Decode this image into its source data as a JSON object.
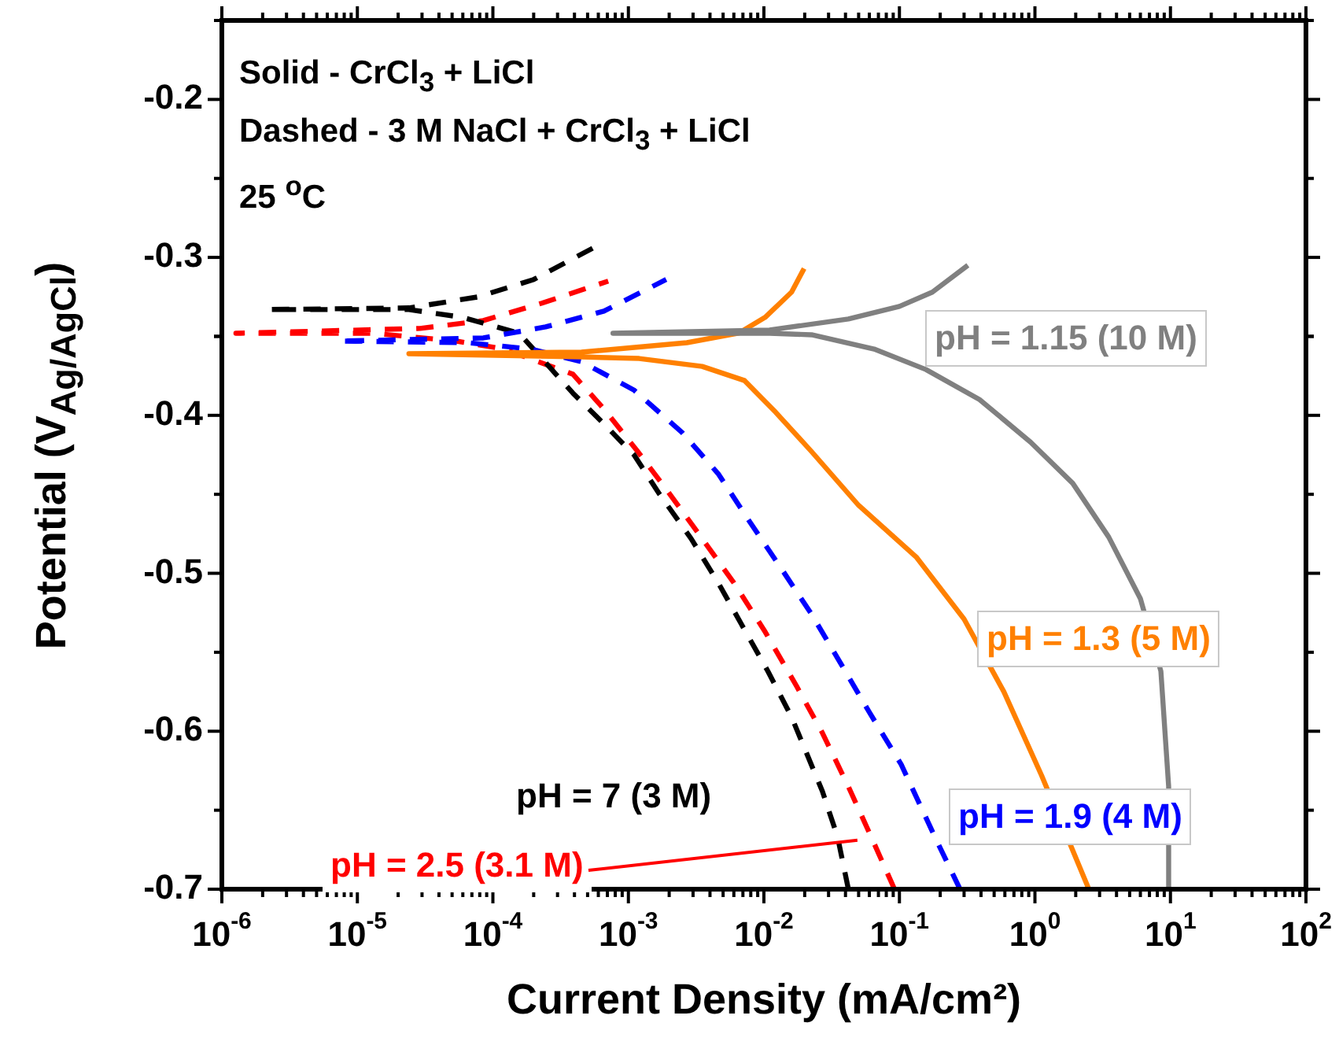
{
  "chart_data": {
    "type": "line",
    "xlabel": "Current Density (mA/cm²)",
    "ylabel": "Potential (V$_{Ag/AgCl}$)",
    "annotations": [
      "Solid - CrCl$_{3}$ + LiCl",
      "Dashed - 3 M NaCl + CrCl$_{3}$ + LiCl",
      "25 $^{o}$C"
    ],
    "log": "x",
    "xlim": [
      1e-06,
      100
    ],
    "ylim": [
      -0.7,
      -0.15
    ],
    "xticks": [
      {
        "value": 1e-06,
        "label": "10$^{-6}$"
      },
      {
        "value": 1e-05,
        "label": "10$^{-5}$"
      },
      {
        "value": 0.0001,
        "label": "10$^{-4}$"
      },
      {
        "value": 0.001,
        "label": "10$^{-3}$"
      },
      {
        "value": 0.01,
        "label": "10$^{-2}$"
      },
      {
        "value": 0.1,
        "label": "10$^{-1}$"
      },
      {
        "value": 1,
        "label": "10$^{0}$"
      },
      {
        "value": 10,
        "label": "10$^{1}$"
      },
      {
        "value": 100,
        "label": "10$^{2}$"
      }
    ],
    "yticks": [
      -0.7,
      -0.6,
      -0.5,
      -0.4,
      -0.3,
      -0.2
    ],
    "marker": "none",
    "series": [
      {
        "name": "pH = 1.15 (10 M)",
        "color": "#808080",
        "line_style": "solid",
        "x": [
          9.7,
          9.7,
          8.5,
          6.0,
          3.5,
          1.9,
          0.93,
          0.39,
          0.157,
          0.065,
          0.0225,
          0.011,
          0.00077,
          0.011,
          0.042,
          0.1,
          0.175,
          0.32
        ],
        "values": [
          -0.7,
          -0.635,
          -0.562,
          -0.516,
          -0.477,
          -0.443,
          -0.417,
          -0.39,
          -0.371,
          -0.358,
          -0.349,
          -0.348,
          -0.348,
          -0.346,
          -0.339,
          -0.331,
          -0.322,
          -0.305
        ]
      },
      {
        "name": "pH = 1.3 (5 M)",
        "color": "#ff8000",
        "line_style": "solid",
        "x": [
          2.5,
          1.12,
          0.59,
          0.3,
          0.134,
          0.05,
          0.0225,
          0.0122,
          0.0072,
          0.0035,
          0.0012,
          0.00045,
          2.4e-05,
          0.00045,
          0.0027,
          0.0065,
          0.0102,
          0.016,
          0.0198
        ],
        "values": [
          -0.7,
          -0.628,
          -0.575,
          -0.529,
          -0.49,
          -0.457,
          -0.423,
          -0.398,
          -0.378,
          -0.369,
          -0.364,
          -0.363,
          -0.361,
          -0.36,
          -0.354,
          -0.348,
          -0.338,
          -0.322,
          -0.307
        ]
      },
      {
        "name": "pH = 1.9 (4 M)",
        "color": "#0000ff",
        "line_style": "dashed",
        "x": [
          0.28,
          0.19,
          0.103,
          0.06,
          0.038,
          0.0225,
          0.0132,
          0.0078,
          0.0046,
          0.0025,
          0.0011,
          0.00045,
          0.00019,
          6.5e-05,
          7.3e-06,
          8.5e-05,
          0.000245,
          0.00066,
          0.0019
        ],
        "values": [
          -0.7,
          -0.67,
          -0.621,
          -0.588,
          -0.559,
          -0.526,
          -0.496,
          -0.467,
          -0.437,
          -0.411,
          -0.384,
          -0.366,
          -0.358,
          -0.354,
          -0.353,
          -0.351,
          -0.344,
          -0.334,
          -0.314
        ]
      },
      {
        "name": "pH = 7 (3 M)",
        "color": "#000000",
        "line_style": "dashed",
        "x": [
          0.042,
          0.035,
          0.027,
          0.016,
          0.0107,
          0.0068,
          0.0046,
          0.0029,
          0.0017,
          0.0011,
          0.00067,
          0.00039,
          0.00023,
          0.000156,
          6e-05,
          2.4e-05,
          9.3e-06,
          2.2e-06,
          2.4e-05,
          7.8e-05,
          0.0002,
          0.00055
        ],
        "values": [
          -0.7,
          -0.667,
          -0.638,
          -0.591,
          -0.562,
          -0.532,
          -0.506,
          -0.478,
          -0.45,
          -0.425,
          -0.406,
          -0.386,
          -0.364,
          -0.348,
          -0.338,
          -0.333,
          -0.333,
          -0.333,
          -0.332,
          -0.325,
          -0.314,
          -0.294
        ]
      },
      {
        "name": "pH = 2.5 (3.1 M)",
        "color": "#ff0000",
        "line_style": "dashed",
        "x": [
          0.092,
          0.062,
          0.042,
          0.027,
          0.0173,
          0.0102,
          0.006,
          0.0035,
          0.00195,
          0.00115,
          0.00066,
          0.00039,
          0.00012,
          5.4e-05,
          1.3e-05,
          1.9e-06,
          1.27e-06,
          2.9e-05,
          8.5e-05,
          0.00023,
          0.00071
        ],
        "values": [
          -0.7,
          -0.667,
          -0.635,
          -0.601,
          -0.571,
          -0.537,
          -0.506,
          -0.478,
          -0.448,
          -0.422,
          -0.396,
          -0.374,
          -0.358,
          -0.353,
          -0.348,
          -0.348,
          -0.348,
          -0.345,
          -0.34,
          -0.329,
          -0.315
        ]
      }
    ]
  }
}
